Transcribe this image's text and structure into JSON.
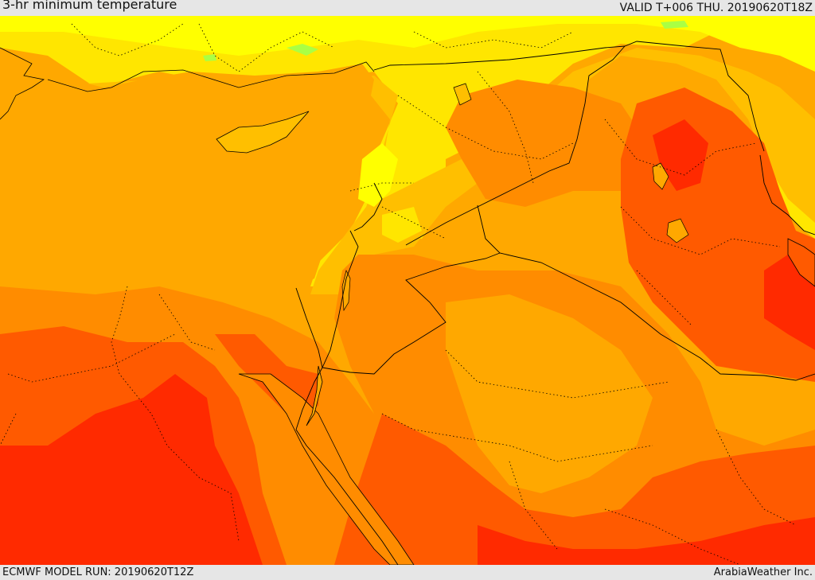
{
  "header": {
    "title": "3-hr minimum temperature",
    "valid": "VALID T+006 THU. 20190620T18Z"
  },
  "footer": {
    "model_run": "ECMWF MODEL RUN: 20190620T12Z",
    "credit": "ArabiaWeather Inc."
  },
  "palette": {
    "light_yellow": "#ffff00",
    "yellow": "#ffe600",
    "light_orange": "#ffbf00",
    "orange": "#ffa800",
    "dark_orange": "#ff8c00",
    "red_orange": "#ff5a00",
    "red": "#ff2a00",
    "green_speck": "#aaff44",
    "boundary": "#000000"
  }
}
